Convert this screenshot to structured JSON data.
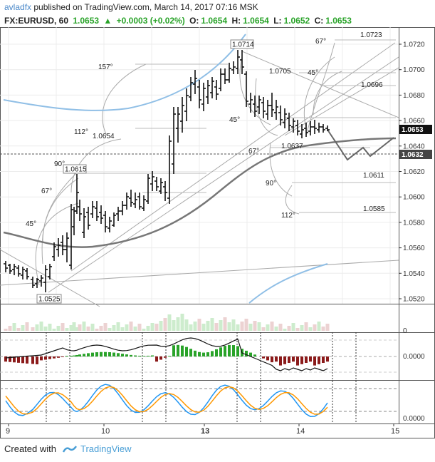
{
  "header": {
    "author": "avladfx",
    "published_text": " published on TradingView.com, March 14, 2017 07:16 MSK",
    "symbol": "FX:EURUSD, 60",
    "last": "1.0653",
    "change": "+0.0003 (+0.02%)",
    "o_label": "O:",
    "o": "1.0654",
    "h_label": "H:",
    "h": "1.0654",
    "l_label": "L:",
    "l": "1.0652",
    "c_label": "C:",
    "c": "1.0653"
  },
  "price_axis": {
    "ticks": [
      "1.0720",
      "1.0700",
      "1.0680",
      "1.0660",
      "1.0640",
      "1.0620",
      "1.0600",
      "1.0580",
      "1.0560",
      "1.0540",
      "1.0520"
    ],
    "last_price_label": "1.0653",
    "dashed_level_label": "1.0632"
  },
  "time_axis": {
    "labels": [
      "9",
      "10",
      "13",
      "14",
      "15"
    ]
  },
  "annotations": {
    "price_labels": [
      "1.0723",
      "1.0714",
      "1.0705",
      "1.0696",
      "1.0654",
      "1.0637",
      "1.0615",
      "1.0611",
      "1.0585",
      "1.0525"
    ],
    "angle_labels": [
      "67°",
      "157°",
      "45°",
      "45°",
      "112°",
      "90°",
      "67°",
      "67°",
      "45°",
      "90°",
      "112°"
    ]
  },
  "indicators": {
    "volume_zero": "0",
    "macd_zero": "0.0000",
    "stoch_zero": "0.0000"
  },
  "colors": {
    "up": "#29a329",
    "down": "#8b1a1a",
    "blue_line": "#2196f3",
    "orange_line": "#ff9800",
    "ma_line": "#777777",
    "brand": "#4a9fd6"
  },
  "footer": {
    "created_with": "Created with",
    "brand": "TradingView"
  }
}
